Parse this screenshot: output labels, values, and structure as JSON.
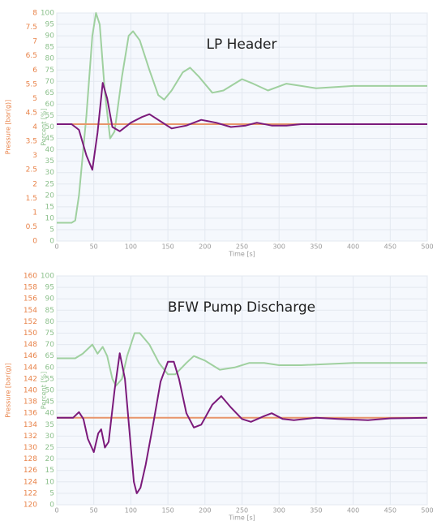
{
  "chart_data": [
    {
      "type": "line",
      "title": "LP Header",
      "xlabel": "Time [s]",
      "ylabel": "Pressure [bar(g)]",
      "y2label": "Percent [%]",
      "ylabel_color": "#e8834a",
      "y2label_color": "#8cc08c",
      "xlim": [
        0,
        500
      ],
      "xticks": [
        0,
        50,
        100,
        150,
        200,
        250,
        300,
        350,
        400,
        450,
        500
      ],
      "ylim": [
        0,
        8
      ],
      "yticks": [
        0,
        0.5,
        1,
        1.5,
        2,
        2.5,
        3,
        3.5,
        4,
        4.5,
        5,
        5.5,
        6,
        6.5,
        7,
        7.5,
        8
      ],
      "y2lim": [
        0,
        100
      ],
      "y2ticks": [
        0,
        5,
        10,
        15,
        20,
        25,
        30,
        35,
        40,
        45,
        50,
        55,
        60,
        65,
        70,
        75,
        80,
        85,
        90,
        95,
        100
      ],
      "grid": true,
      "series": [
        {
          "color": "#9fd09f",
          "axis": "y2",
          "x": [
            0,
            20,
            25,
            30,
            40,
            48,
            53,
            58,
            65,
            72,
            78,
            88,
            97,
            103,
            112,
            125,
            137,
            145,
            155,
            170,
            180,
            192,
            210,
            225,
            250,
            265,
            285,
            310,
            330,
            350,
            400,
            500
          ],
          "values": [
            8,
            8,
            9,
            20,
            55,
            90,
            100,
            95,
            65,
            45,
            48,
            72,
            90,
            92,
            88,
            75,
            64,
            62,
            66,
            74,
            76,
            72,
            65,
            66,
            71,
            69,
            66,
            69,
            68,
            67,
            68,
            68
          ]
        },
        {
          "color": "#e8956b",
          "x": [
            0,
            500
          ],
          "values": [
            4.1,
            4.1
          ]
        },
        {
          "color": "#7b1a7b",
          "x": [
            0,
            20,
            30,
            40,
            48,
            55,
            62,
            68,
            75,
            85,
            90,
            100,
            115,
            125,
            140,
            155,
            175,
            195,
            215,
            235,
            255,
            270,
            290,
            310,
            330,
            500
          ],
          "values": [
            4.1,
            4.1,
            3.9,
            3.0,
            2.5,
            3.8,
            5.55,
            5.0,
            4.0,
            3.85,
            3.95,
            4.15,
            4.35,
            4.45,
            4.2,
            3.95,
            4.05,
            4.25,
            4.15,
            4.0,
            4.05,
            4.15,
            4.05,
            4.05,
            4.1,
            4.1
          ]
        }
      ]
    },
    {
      "type": "line",
      "title": "BFW Pump Discharge",
      "xlabel": "Time [s]",
      "ylabel": "Pressure [bar(g)]",
      "y2label": "Percent [%]",
      "ylabel_color": "#e8834a",
      "y2label_color": "#8cc08c",
      "xlim": [
        0,
        500
      ],
      "xticks": [
        0,
        50,
        100,
        150,
        200,
        250,
        300,
        350,
        400,
        450,
        500
      ],
      "ylim": [
        120,
        160
      ],
      "yticks": [
        120,
        122,
        124,
        126,
        128,
        130,
        132,
        134,
        136,
        138,
        140,
        142,
        144,
        146,
        148,
        150,
        152,
        154,
        156,
        158,
        160
      ],
      "y2lim": [
        0,
        100
      ],
      "y2ticks": [
        0,
        5,
        10,
        15,
        20,
        25,
        30,
        35,
        40,
        45,
        50,
        55,
        60,
        65,
        70,
        75,
        80,
        85,
        90,
        95,
        100
      ],
      "grid": true,
      "series": [
        {
          "color": "#9fd09f",
          "axis": "y2",
          "x": [
            0,
            25,
            35,
            48,
            55,
            62,
            68,
            75,
            80,
            88,
            95,
            105,
            112,
            125,
            138,
            150,
            160,
            175,
            185,
            200,
            220,
            240,
            260,
            280,
            300,
            330,
            400,
            500
          ],
          "values": [
            64,
            64,
            66,
            70,
            66,
            69,
            65,
            55,
            52,
            55,
            65,
            75,
            75,
            70,
            62,
            57,
            57,
            62,
            65,
            63,
            59,
            60,
            62,
            62,
            61,
            61,
            62,
            62
          ]
        },
        {
          "color": "#e8956b",
          "x": [
            0,
            500
          ],
          "values": [
            135.2,
            135.2
          ]
        },
        {
          "color": "#7b1a7b",
          "x": [
            0,
            22,
            30,
            36,
            42,
            50,
            56,
            60,
            65,
            70,
            78,
            85,
            92,
            98,
            104,
            108,
            113,
            120,
            130,
            140,
            150,
            158,
            165,
            175,
            185,
            195,
            210,
            222,
            235,
            250,
            262,
            280,
            290,
            305,
            320,
            350,
            380,
            420,
            450,
            500
          ],
          "values": [
            135.2,
            135.2,
            136.2,
            135,
            131.5,
            129.2,
            132.5,
            133.2,
            130,
            131,
            140,
            146.5,
            142,
            133,
            124,
            122,
            123,
            127,
            134,
            141.5,
            145,
            145,
            142,
            136,
            133.5,
            134,
            137.5,
            139,
            137,
            135,
            134.5,
            135.5,
            136,
            135,
            134.8,
            135.2,
            135,
            134.8,
            135.1,
            135.2
          ]
        }
      ]
    }
  ]
}
